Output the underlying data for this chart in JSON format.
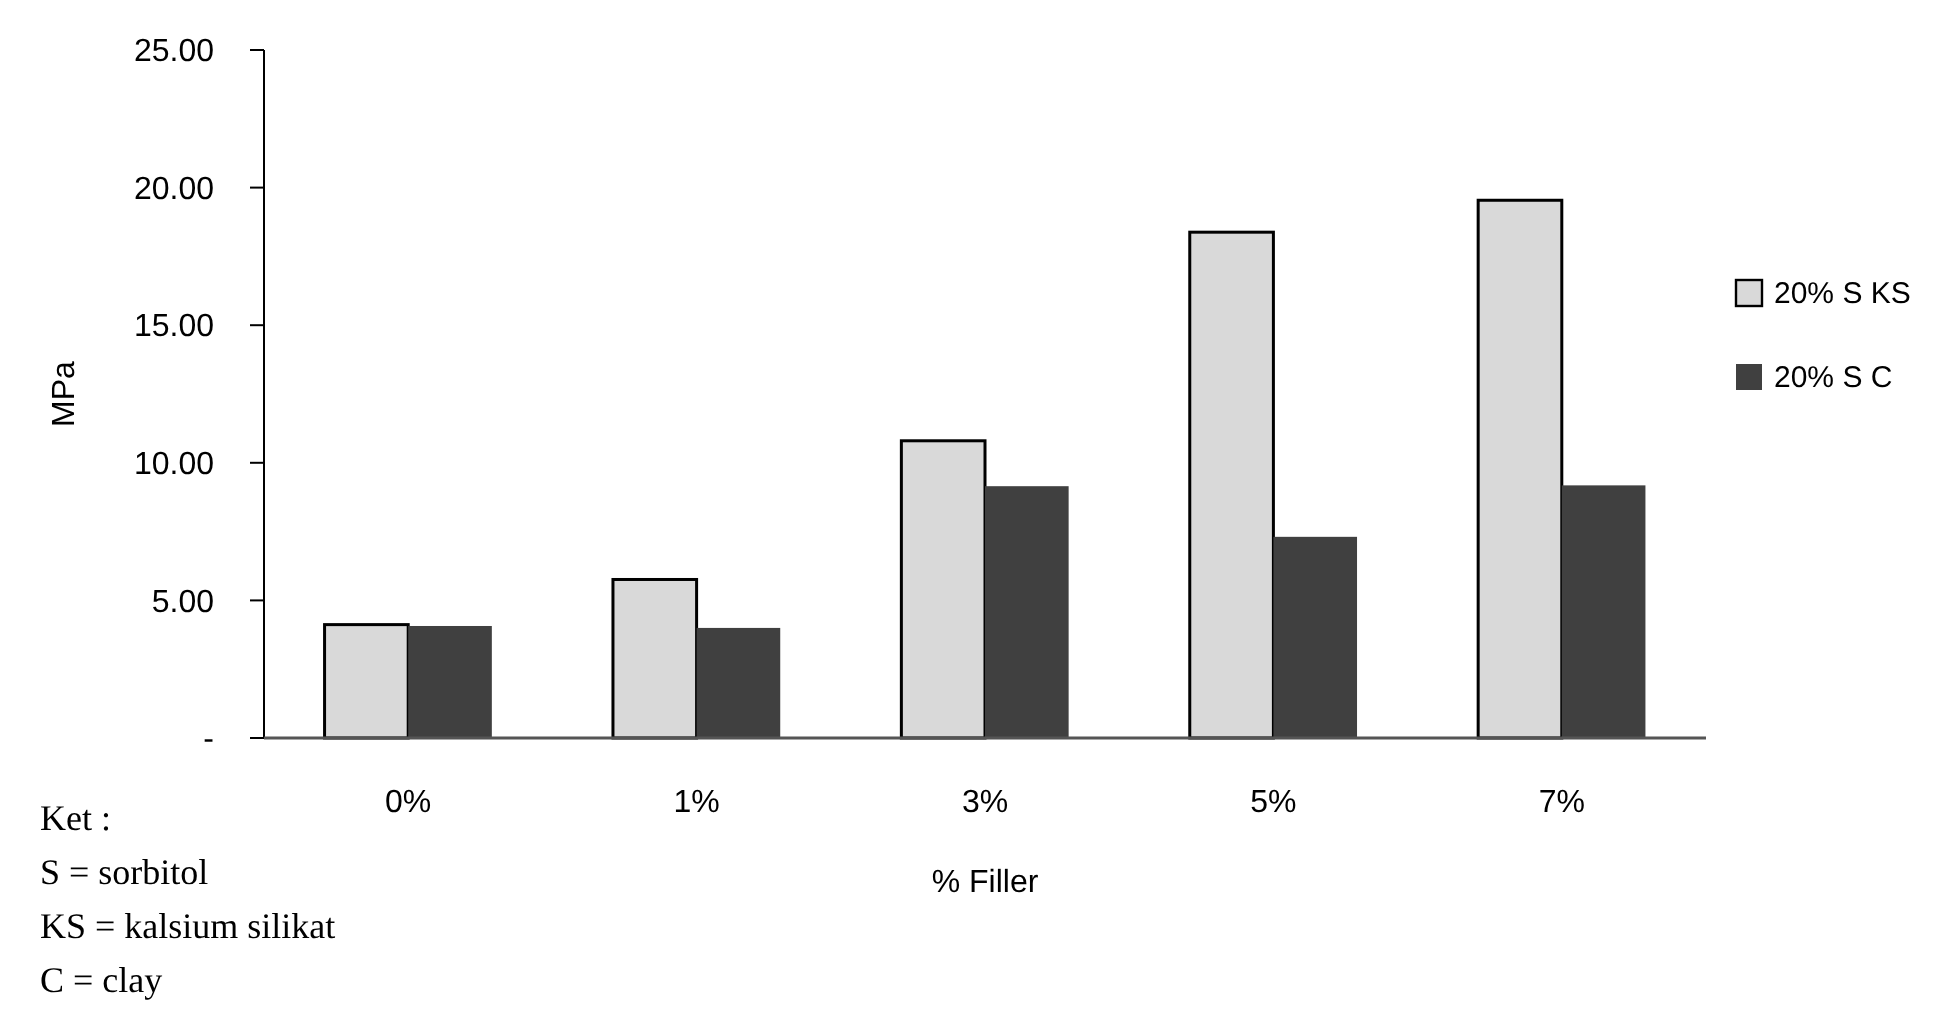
{
  "chart_data": {
    "type": "bar",
    "xlabel": "% Filler",
    "ylabel": "MPa",
    "categories": [
      "0%",
      "1%",
      "3%",
      "5%",
      "7%"
    ],
    "series": [
      {
        "name": "20% S KS",
        "color": "#d9d9d9",
        "values": [
          4.12,
          5.76,
          10.8,
          18.38,
          19.54
        ]
      },
      {
        "name": "20% S C",
        "color": "#404040",
        "values": [
          4.07,
          4.0,
          9.15,
          7.31,
          9.18
        ]
      }
    ],
    "ylim": [
      0,
      25
    ],
    "yticks": [
      {
        "value": 0,
        "label": "-"
      },
      {
        "value": 5,
        "label": "5.00"
      },
      {
        "value": 10,
        "label": "10.00"
      },
      {
        "value": 15,
        "label": "15.00"
      },
      {
        "value": 20,
        "label": "20.00"
      },
      {
        "value": 25,
        "label": "25.00"
      }
    ],
    "grid": false,
    "legend": "right",
    "annotations": [
      "Ket :",
      "S = sorbitol",
      "KS = kalsium silikat",
      "C = clay"
    ]
  }
}
